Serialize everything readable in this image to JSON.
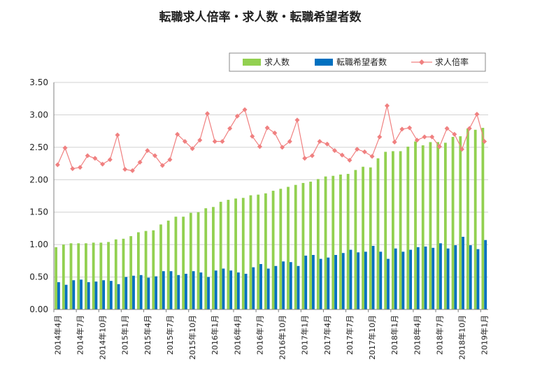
{
  "chart_data": {
    "type": "bar",
    "title": "転職求人倍率・求人数・転職希望者数",
    "xlabel": "",
    "ylabel": "",
    "ylim": [
      0,
      3.5
    ],
    "yticks": [
      "0.00",
      "0.50",
      "1.00",
      "1.50",
      "2.00",
      "2.50",
      "3.00",
      "3.50"
    ],
    "grid": true,
    "legend_position": "top-right",
    "x_tick_labels": [
      "2014年4月",
      "2014年7月",
      "2014年10月",
      "2015年1月",
      "2015年4月",
      "2015年7月",
      "2015年10月",
      "2016年1月",
      "2016年4月",
      "2016年7月",
      "2016年10月",
      "2017年1月",
      "2017年4月",
      "2017年7月",
      "2017年10月",
      "2018年1月",
      "2018年4月",
      "2018年7月",
      "2018年10月",
      "2019年1月"
    ],
    "categories": [
      "2014-04",
      "2014-05",
      "2014-06",
      "2014-07",
      "2014-08",
      "2014-09",
      "2014-10",
      "2014-11",
      "2014-12",
      "2015-01",
      "2015-02",
      "2015-03",
      "2015-04",
      "2015-05",
      "2015-06",
      "2015-07",
      "2015-08",
      "2015-09",
      "2015-10",
      "2015-11",
      "2015-12",
      "2016-01",
      "2016-02",
      "2016-03",
      "2016-04",
      "2016-05",
      "2016-06",
      "2016-07",
      "2016-08",
      "2016-09",
      "2016-10",
      "2016-11",
      "2016-12",
      "2017-01",
      "2017-02",
      "2017-03",
      "2017-04",
      "2017-05",
      "2017-06",
      "2017-07",
      "2017-08",
      "2017-09",
      "2017-10",
      "2017-11",
      "2017-12",
      "2018-01",
      "2018-02",
      "2018-03",
      "2018-04",
      "2018-05",
      "2018-06",
      "2018-07",
      "2018-08",
      "2018-09",
      "2018-10",
      "2018-11",
      "2018-12",
      "2019-01"
    ],
    "series": [
      {
        "name": "求人数",
        "kind": "bar",
        "color": "#92d050",
        "values": [
          0.96,
          1.0,
          1.02,
          1.02,
          1.02,
          1.03,
          1.03,
          1.04,
          1.08,
          1.09,
          1.13,
          1.19,
          1.21,
          1.22,
          1.31,
          1.37,
          1.43,
          1.43,
          1.49,
          1.5,
          1.56,
          1.58,
          1.66,
          1.69,
          1.71,
          1.72,
          1.76,
          1.77,
          1.79,
          1.83,
          1.86,
          1.89,
          1.92,
          1.95,
          1.97,
          2.01,
          2.05,
          2.06,
          2.08,
          2.09,
          2.15,
          2.2,
          2.19,
          2.33,
          2.43,
          2.44,
          2.44,
          2.51,
          2.59,
          2.53,
          2.58,
          2.58,
          2.57,
          2.66,
          2.67,
          2.79,
          2.77,
          2.8
        ]
      },
      {
        "name": "転職希望者数",
        "kind": "bar",
        "color": "#0070c0",
        "values": [
          0.42,
          0.38,
          0.45,
          0.46,
          0.42,
          0.43,
          0.45,
          0.44,
          0.39,
          0.5,
          0.52,
          0.53,
          0.49,
          0.51,
          0.59,
          0.59,
          0.53,
          0.55,
          0.59,
          0.57,
          0.5,
          0.6,
          0.63,
          0.6,
          0.57,
          0.55,
          0.65,
          0.7,
          0.63,
          0.67,
          0.74,
          0.73,
          0.67,
          0.83,
          0.84,
          0.78,
          0.8,
          0.84,
          0.87,
          0.92,
          0.88,
          0.89,
          0.98,
          0.89,
          0.78,
          0.94,
          0.89,
          0.92,
          0.96,
          0.97,
          0.95,
          1.02,
          0.94,
          0.99,
          1.12,
          0.99,
          0.93,
          1.07
        ]
      },
      {
        "name": "求人倍率",
        "kind": "line",
        "color": "#f08080",
        "values": [
          2.23,
          2.49,
          2.17,
          2.19,
          2.37,
          2.33,
          2.24,
          2.31,
          2.69,
          2.16,
          2.14,
          2.27,
          2.45,
          2.37,
          2.22,
          2.31,
          2.7,
          2.59,
          2.48,
          2.61,
          3.02,
          2.59,
          2.59,
          2.79,
          2.98,
          3.08,
          2.67,
          2.51,
          2.8,
          2.72,
          2.5,
          2.59,
          2.92,
          2.33,
          2.37,
          2.59,
          2.55,
          2.45,
          2.38,
          2.3,
          2.47,
          2.43,
          2.36,
          2.66,
          3.14,
          2.58,
          2.78,
          2.8,
          2.61,
          2.66,
          2.66,
          2.51,
          2.79,
          2.7,
          2.47,
          2.79,
          3.01,
          2.59
        ]
      }
    ]
  }
}
